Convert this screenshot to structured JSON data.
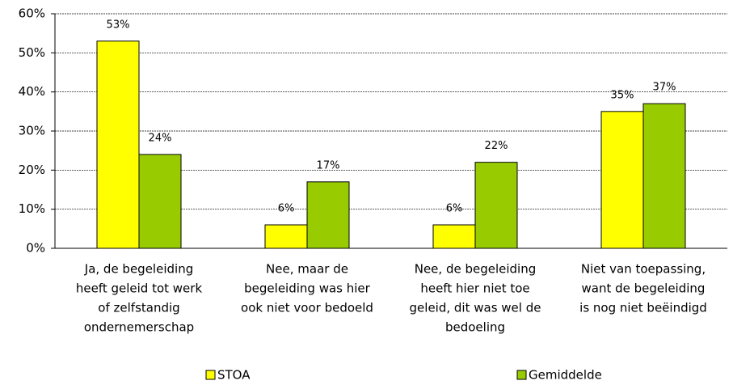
{
  "chart_data": {
    "type": "bar",
    "categories": [
      [
        "Ja, de begeleiding",
        "heeft geleid tot werk",
        "of zelfstandig",
        "ondernemerschap"
      ],
      [
        "Nee, maar de",
        "begeleiding was hier",
        "ook niet voor bedoeld"
      ],
      [
        "Nee, de begeleiding",
        "heeft hier niet toe",
        "geleid, dit was wel de",
        "bedoeling"
      ],
      [
        "Niet van toepassing,",
        "want de begeleiding",
        "is nog niet beëindigd"
      ]
    ],
    "series": [
      {
        "name": "STOA",
        "color": "#ffff00",
        "values": [
          53,
          6,
          6,
          35
        ],
        "value_labels": [
          "53%",
          "6%",
          "6%",
          "35%"
        ]
      },
      {
        "name": "Gemiddelde",
        "color": "#99cc00",
        "values": [
          24,
          17,
          22,
          37
        ],
        "value_labels": [
          "24%",
          "17%",
          "22%",
          "37%"
        ]
      }
    ],
    "ylim": [
      0,
      60
    ],
    "yticks": [
      {
        "value": 0,
        "label": "0%"
      },
      {
        "value": 10,
        "label": "10%"
      },
      {
        "value": 20,
        "label": "20%"
      },
      {
        "value": 30,
        "label": "30%"
      },
      {
        "value": 40,
        "label": "40%"
      },
      {
        "value": 50,
        "label": "50%"
      },
      {
        "value": 60,
        "label": "60%"
      }
    ],
    "grid": true,
    "legend": "bottom"
  }
}
